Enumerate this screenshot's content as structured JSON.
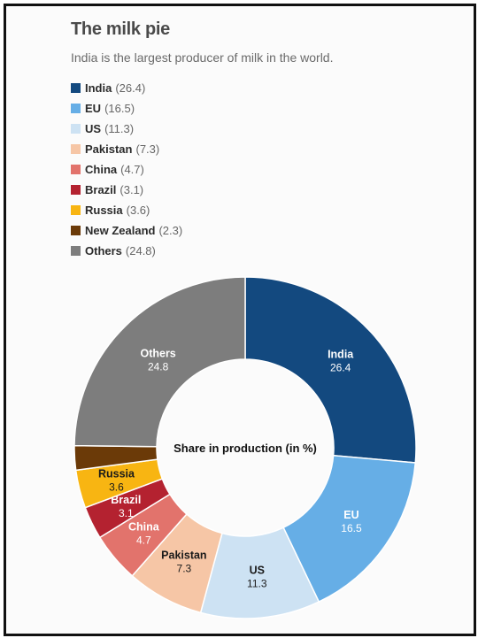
{
  "header": {
    "title": "The milk pie",
    "subtitle": "India is the largest producer of milk in the world."
  },
  "chart_data": {
    "type": "pie",
    "donut": true,
    "center_label": "Share in production (in %)",
    "legend_position": "top-left",
    "slices": [
      {
        "label": "India",
        "value": 26.4,
        "color": "#13497f"
      },
      {
        "label": "EU",
        "value": 16.5,
        "color": "#66aee6"
      },
      {
        "label": "US",
        "value": 11.3,
        "color": "#cde2f3"
      },
      {
        "label": "Pakistan",
        "value": 7.3,
        "color": "#f6c6a6"
      },
      {
        "label": "China",
        "value": 4.7,
        "color": "#e2736c"
      },
      {
        "label": "Brazil",
        "value": 3.1,
        "color": "#b42230"
      },
      {
        "label": "Russia",
        "value": 3.6,
        "color": "#f8b512"
      },
      {
        "label": "New Zealand",
        "value": 2.3,
        "color": "#6b3a08"
      },
      {
        "label": "Others",
        "value": 24.8,
        "color": "#7d7d7d"
      }
    ]
  }
}
